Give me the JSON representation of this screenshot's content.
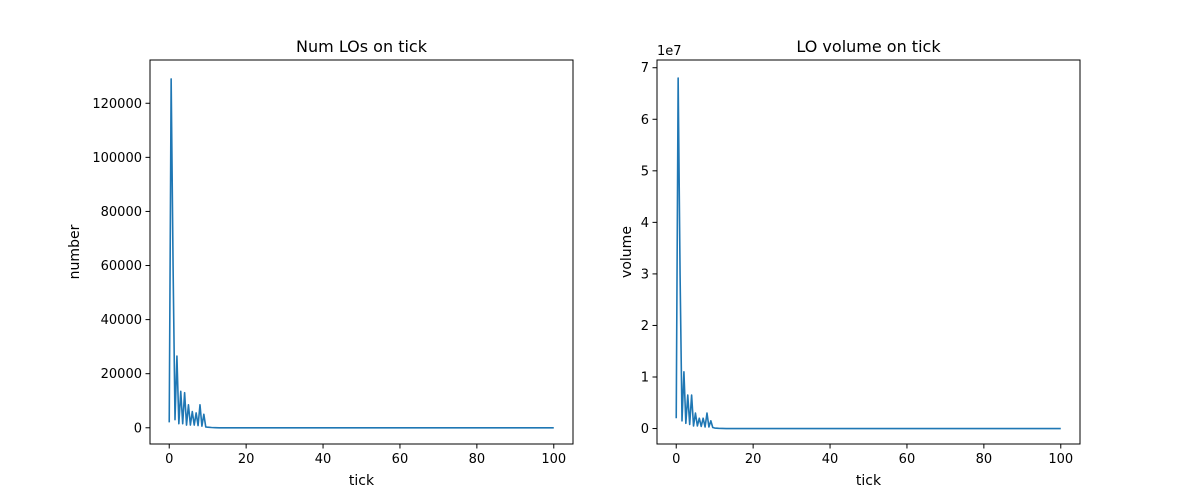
{
  "chart_data": [
    {
      "type": "line",
      "title": "Num LOs on tick",
      "xlabel": "tick",
      "ylabel": "number",
      "xlim": [
        -5,
        105
      ],
      "ylim": [
        -6000,
        136000
      ],
      "x_ticks": [
        0,
        20,
        40,
        60,
        80,
        100
      ],
      "x_tick_labels": [
        "0",
        "20",
        "40",
        "60",
        "80",
        "100"
      ],
      "y_ticks": [
        0,
        20000,
        40000,
        60000,
        80000,
        100000,
        120000
      ],
      "y_tick_labels": [
        "0",
        "20000",
        "40000",
        "60000",
        "80000",
        "100000",
        "120000"
      ],
      "y_offset_label": "",
      "grid": false,
      "series": [
        {
          "color": "#1f77b4",
          "x": [
            0,
            0.5,
            1,
            1.5,
            2,
            2.5,
            3,
            3.5,
            4,
            4.5,
            5,
            5.5,
            6,
            6.5,
            7,
            7.5,
            8,
            8.5,
            9,
            9.5,
            10,
            11,
            12,
            13,
            14,
            15,
            16,
            17,
            18,
            19,
            20,
            25,
            30,
            35,
            40,
            45,
            50,
            55,
            60,
            65,
            70,
            75,
            80,
            85,
            90,
            95,
            100
          ],
          "values": [
            2000,
            129000,
            60000,
            3000,
            26500,
            1500,
            13500,
            1500,
            13000,
            1000,
            8500,
            1000,
            6000,
            1000,
            5500,
            800,
            8500,
            600,
            5000,
            300,
            200,
            100,
            50,
            0,
            0,
            0,
            0,
            0,
            0,
            0,
            0,
            0,
            0,
            0,
            0,
            0,
            0,
            0,
            0,
            0,
            0,
            0,
            0,
            0,
            0,
            0,
            0
          ]
        }
      ]
    },
    {
      "type": "line",
      "title": "LO volume on tick",
      "xlabel": "tick",
      "ylabel": "volume",
      "xlim": [
        -5,
        105
      ],
      "ylim": [
        -3,
        71.5
      ],
      "x_ticks": [
        0,
        20,
        40,
        60,
        80,
        100
      ],
      "x_tick_labels": [
        "0",
        "20",
        "40",
        "60",
        "80",
        "100"
      ],
      "y_ticks": [
        0,
        10,
        20,
        30,
        40,
        50,
        60,
        70
      ],
      "y_tick_labels": [
        "0",
        "1",
        "2",
        "3",
        "4",
        "5",
        "6",
        "7"
      ],
      "y_offset_label": "1e7",
      "grid": false,
      "series": [
        {
          "color": "#1f77b4",
          "x": [
            0,
            0.5,
            1,
            1.5,
            2,
            2.5,
            3,
            3.5,
            4,
            4.5,
            5,
            5.5,
            6,
            6.5,
            7,
            7.5,
            8,
            8.5,
            9,
            9.5,
            10,
            11,
            12,
            13,
            14,
            15,
            16,
            17,
            18,
            19,
            20,
            25,
            30,
            35,
            40,
            45,
            50,
            55,
            60,
            65,
            70,
            75,
            80,
            85,
            90,
            95,
            100
          ],
          "values": [
            2,
            68,
            30,
            1.5,
            11,
            1,
            6.5,
            0.8,
            6.5,
            0.5,
            3,
            0.5,
            2,
            0.4,
            2,
            0.3,
            3,
            0.3,
            1.5,
            0.2,
            0.1,
            0.05,
            0.02,
            0,
            0,
            0,
            0,
            0,
            0,
            0,
            0,
            0,
            0,
            0,
            0,
            0,
            0,
            0,
            0,
            0,
            0,
            0,
            0,
            0,
            0,
            0,
            0
          ]
        }
      ]
    }
  ]
}
